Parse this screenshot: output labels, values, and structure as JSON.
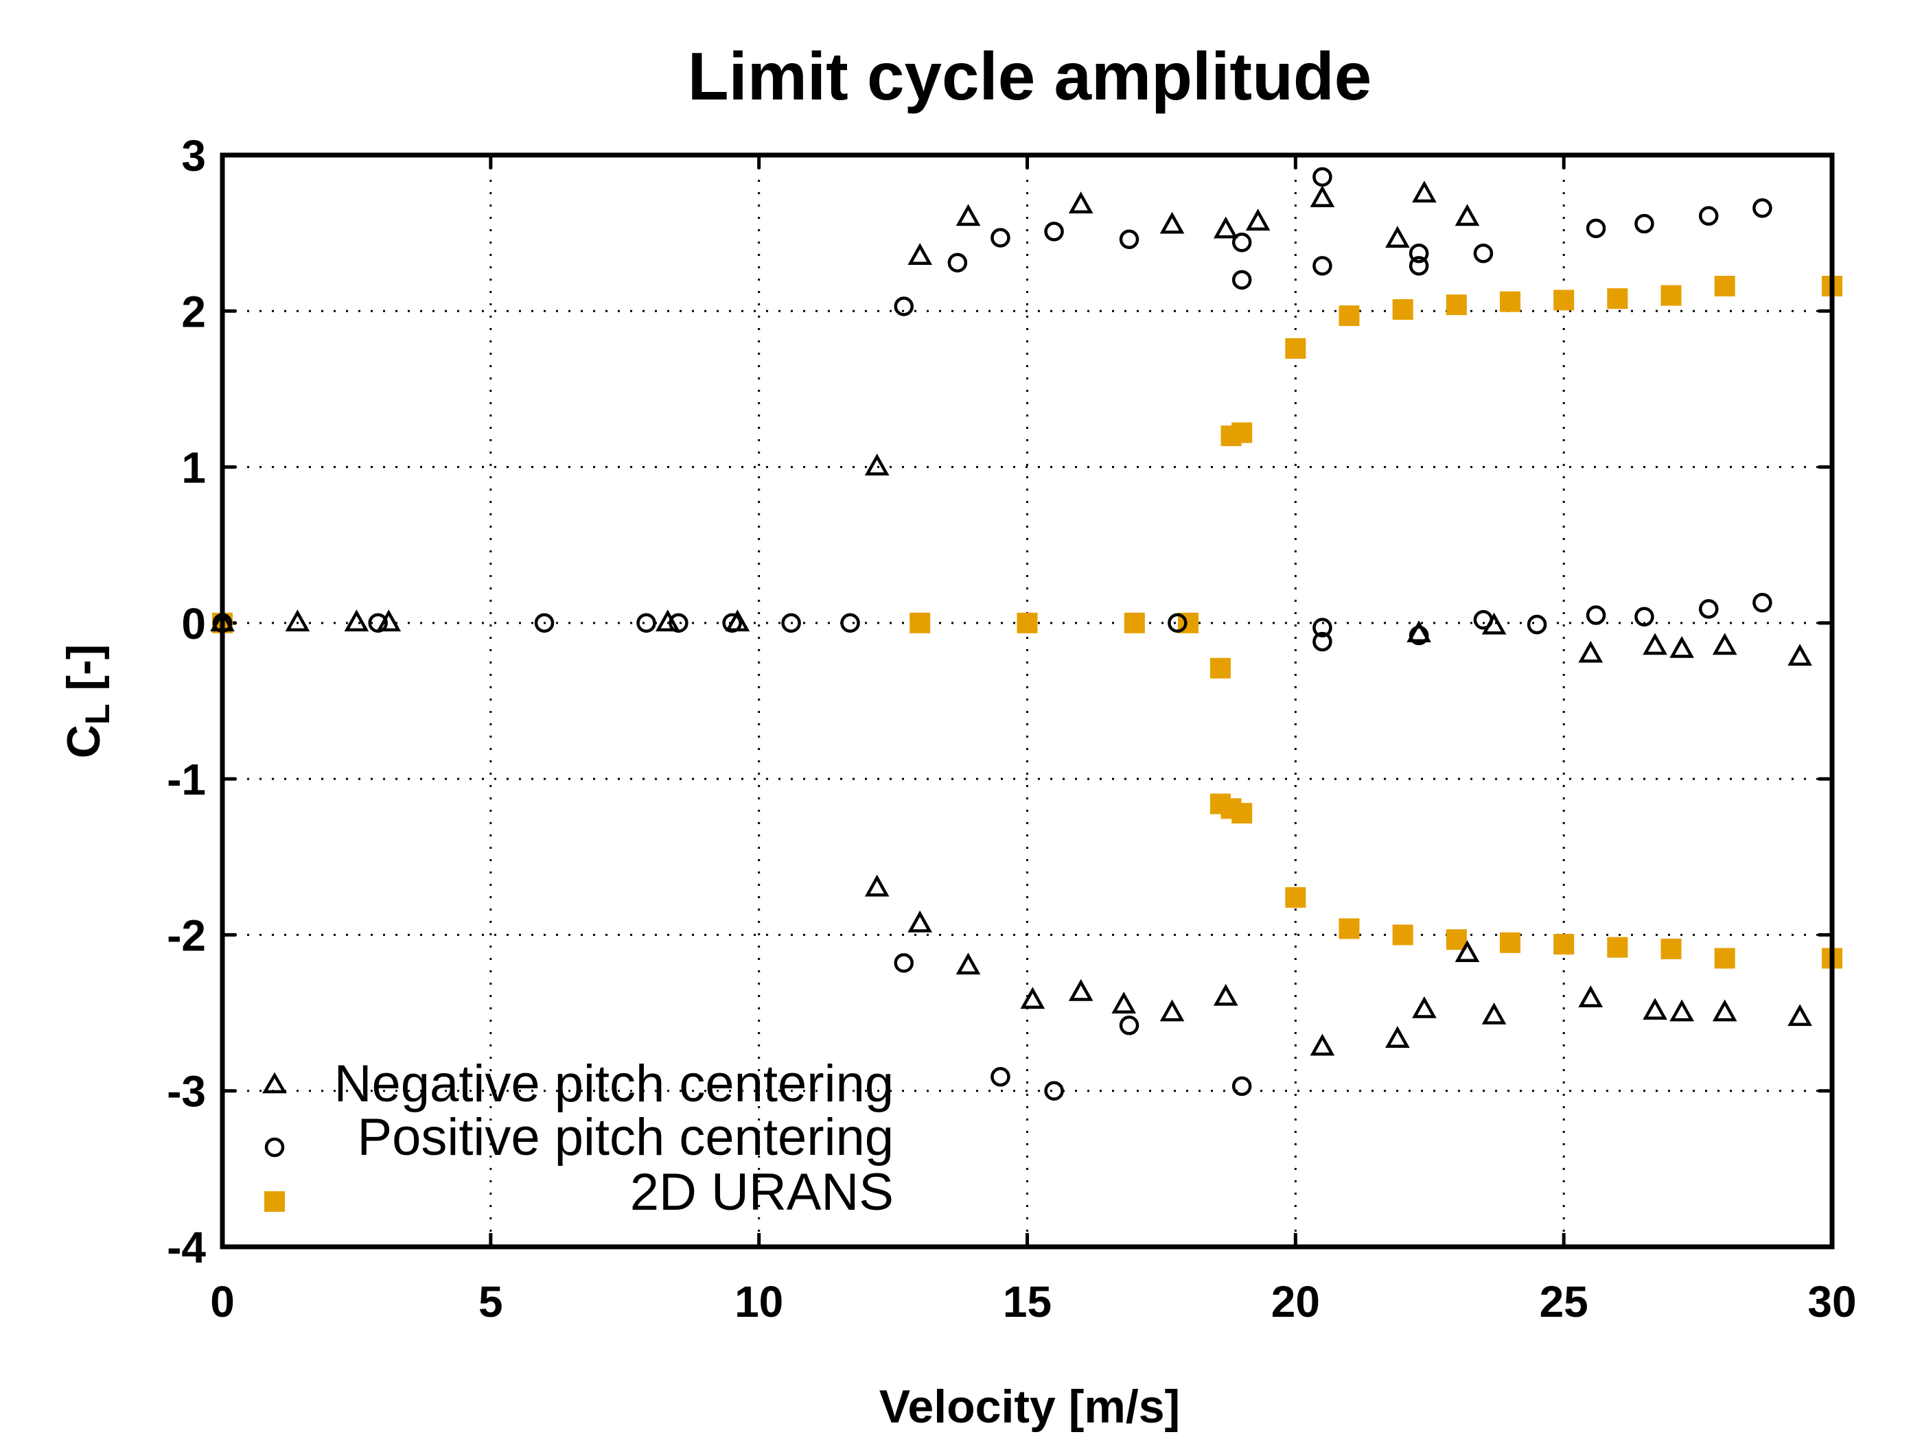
{
  "chart_data": {
    "type": "scatter",
    "title": "Limit cycle amplitude",
    "xlabel": "Velocity [m/s]",
    "ylabel_main": "C",
    "ylabel_sub": "L",
    "ylabel_suffix": " [-]",
    "xlim": [
      0,
      30
    ],
    "ylim": [
      -4,
      3
    ],
    "xticks": [
      0,
      5,
      10,
      15,
      20,
      25,
      30
    ],
    "yticks": [
      -4,
      -3,
      -2,
      -1,
      0,
      1,
      2,
      3
    ],
    "grid": true,
    "legend_position": "bottom-left",
    "series": [
      {
        "name": "Negative pitch centering",
        "marker": "triangle",
        "color": "#000000",
        "points": [
          [
            0,
            0
          ],
          [
            1.4,
            0
          ],
          [
            2.5,
            0
          ],
          [
            3.1,
            0
          ],
          [
            8.3,
            0
          ],
          [
            9.6,
            0
          ],
          [
            12.2,
            1.0
          ],
          [
            13.0,
            2.35
          ],
          [
            13.9,
            2.6
          ],
          [
            16.0,
            2.68
          ],
          [
            17.7,
            2.55
          ],
          [
            18.7,
            2.52
          ],
          [
            19.3,
            2.57
          ],
          [
            20.5,
            2.72
          ],
          [
            21.9,
            2.46
          ],
          [
            22.4,
            2.75
          ],
          [
            23.2,
            2.6
          ],
          [
            22.3,
            -0.07
          ],
          [
            23.7,
            -0.02
          ],
          [
            25.5,
            -0.2
          ],
          [
            26.7,
            -0.15
          ],
          [
            27.2,
            -0.17
          ],
          [
            28.0,
            -0.15
          ],
          [
            29.4,
            -0.22
          ],
          [
            12.2,
            -1.7
          ],
          [
            13.0,
            -1.93
          ],
          [
            13.9,
            -2.2
          ],
          [
            15.1,
            -2.42
          ],
          [
            16.0,
            -2.37
          ],
          [
            16.8,
            -2.45
          ],
          [
            17.7,
            -2.5
          ],
          [
            18.7,
            -2.4
          ],
          [
            20.5,
            -2.72
          ],
          [
            21.9,
            -2.67
          ],
          [
            22.4,
            -2.48
          ],
          [
            23.2,
            -2.12
          ],
          [
            23.7,
            -2.52
          ],
          [
            25.5,
            -2.41
          ],
          [
            26.7,
            -2.49
          ],
          [
            27.2,
            -2.5
          ],
          [
            28.0,
            -2.5
          ],
          [
            29.4,
            -2.53
          ]
        ]
      },
      {
        "name": "Positive pitch centering",
        "marker": "circle",
        "color": "#000000",
        "points": [
          [
            0,
            0
          ],
          [
            2.9,
            0
          ],
          [
            6.0,
            0
          ],
          [
            7.9,
            0
          ],
          [
            8.5,
            0
          ],
          [
            9.5,
            0
          ],
          [
            10.6,
            0
          ],
          [
            11.7,
            0
          ],
          [
            17.8,
            0
          ],
          [
            12.7,
            2.03
          ],
          [
            13.7,
            2.31
          ],
          [
            14.5,
            2.47
          ],
          [
            15.5,
            2.51
          ],
          [
            16.9,
            2.46
          ],
          [
            19.0,
            2.44
          ],
          [
            19.0,
            2.2
          ],
          [
            20.5,
            2.86
          ],
          [
            20.5,
            2.29
          ],
          [
            22.3,
            2.37
          ],
          [
            22.3,
            2.29
          ],
          [
            23.5,
            2.37
          ],
          [
            25.6,
            2.53
          ],
          [
            26.5,
            2.56
          ],
          [
            27.7,
            2.61
          ],
          [
            28.7,
            2.66
          ],
          [
            20.5,
            -0.03
          ],
          [
            20.5,
            -0.12
          ],
          [
            22.3,
            -0.08
          ],
          [
            23.5,
            0.02
          ],
          [
            24.5,
            -0.01
          ],
          [
            25.6,
            0.05
          ],
          [
            26.5,
            0.04
          ],
          [
            27.7,
            0.09
          ],
          [
            28.7,
            0.13
          ],
          [
            12.7,
            -2.18
          ],
          [
            16.9,
            -2.58
          ],
          [
            14.5,
            -2.91
          ],
          [
            15.5,
            -3.0
          ],
          [
            19.0,
            -2.97
          ]
        ]
      },
      {
        "name": "2D URANS",
        "marker": "square",
        "color": "#E69F00",
        "points": [
          [
            0,
            0
          ],
          [
            13.0,
            0
          ],
          [
            15.0,
            0
          ],
          [
            17.0,
            0
          ],
          [
            18.0,
            0
          ],
          [
            18.6,
            -0.29
          ],
          [
            18.8,
            1.2
          ],
          [
            19.0,
            1.22
          ],
          [
            20.0,
            1.76
          ],
          [
            21.0,
            1.97
          ],
          [
            22.0,
            2.01
          ],
          [
            23.0,
            2.04
          ],
          [
            24.0,
            2.06
          ],
          [
            25.0,
            2.07
          ],
          [
            26.0,
            2.08
          ],
          [
            27.0,
            2.1
          ],
          [
            28.0,
            2.16
          ],
          [
            30.0,
            2.16
          ],
          [
            18.6,
            -1.16
          ],
          [
            18.8,
            -1.19
          ],
          [
            19.0,
            -1.22
          ],
          [
            20.0,
            -1.76
          ],
          [
            21.0,
            -1.96
          ],
          [
            22.0,
            -2.0
          ],
          [
            23.0,
            -2.03
          ],
          [
            24.0,
            -2.05
          ],
          [
            25.0,
            -2.06
          ],
          [
            26.0,
            -2.08
          ],
          [
            27.0,
            -2.09
          ],
          [
            28.0,
            -2.15
          ],
          [
            30.0,
            -2.15
          ]
        ]
      }
    ]
  }
}
